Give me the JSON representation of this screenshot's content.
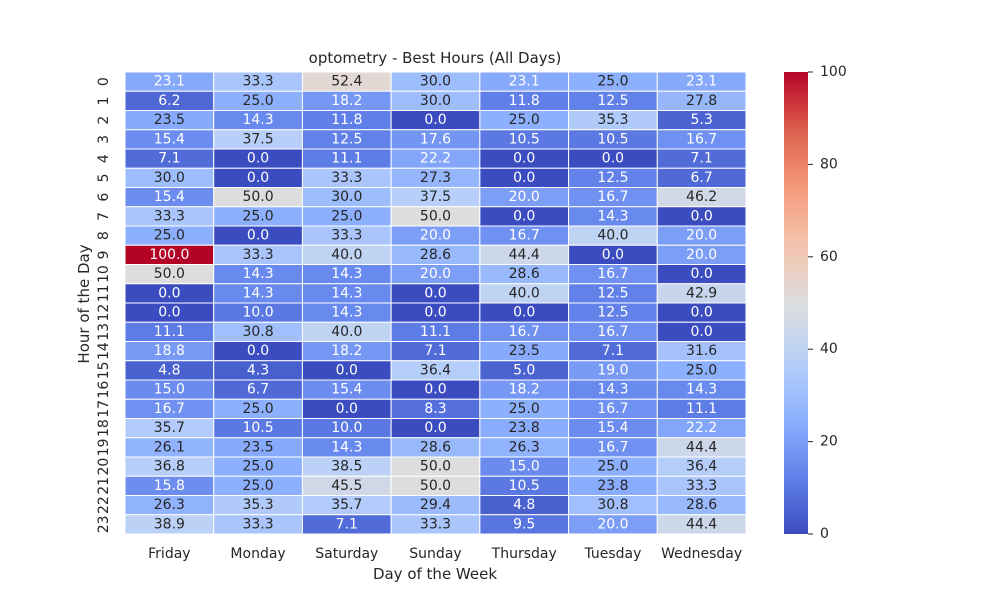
{
  "chart_data": {
    "type": "heatmap",
    "title": "optometry - Best Hours (All Days)",
    "xlabel": "Day of the Week",
    "ylabel": "Hour of the Day",
    "x_categories": [
      "Friday",
      "Monday",
      "Saturday",
      "Sunday",
      "Thursday",
      "Tuesday",
      "Wednesday"
    ],
    "y_categories": [
      "0",
      "1",
      "2",
      "3",
      "4",
      "5",
      "6",
      "7",
      "8",
      "9",
      "10",
      "11",
      "12",
      "13",
      "14",
      "15",
      "16",
      "17",
      "18",
      "19",
      "20",
      "21",
      "22",
      "23"
    ],
    "values": [
      [
        23.1,
        33.3,
        52.4,
        30.0,
        23.1,
        25.0,
        23.1
      ],
      [
        6.2,
        25.0,
        18.2,
        30.0,
        11.8,
        12.5,
        27.8
      ],
      [
        23.5,
        14.3,
        11.8,
        0.0,
        25.0,
        35.3,
        5.3
      ],
      [
        15.4,
        37.5,
        12.5,
        17.6,
        10.5,
        10.5,
        16.7
      ],
      [
        7.1,
        0.0,
        11.1,
        22.2,
        0.0,
        0.0,
        7.1
      ],
      [
        30.0,
        0.0,
        33.3,
        27.3,
        0.0,
        12.5,
        6.7
      ],
      [
        15.4,
        50.0,
        30.0,
        37.5,
        20.0,
        16.7,
        46.2
      ],
      [
        33.3,
        25.0,
        25.0,
        50.0,
        0.0,
        14.3,
        0.0
      ],
      [
        25.0,
        0.0,
        33.3,
        20.0,
        16.7,
        40.0,
        20.0
      ],
      [
        100.0,
        33.3,
        40.0,
        28.6,
        44.4,
        0.0,
        20.0
      ],
      [
        50.0,
        14.3,
        14.3,
        20.0,
        28.6,
        16.7,
        0.0
      ],
      [
        0.0,
        14.3,
        14.3,
        0.0,
        40.0,
        12.5,
        42.9
      ],
      [
        0.0,
        10.0,
        14.3,
        0.0,
        0.0,
        12.5,
        0.0
      ],
      [
        11.1,
        30.8,
        40.0,
        11.1,
        16.7,
        16.7,
        0.0
      ],
      [
        18.8,
        0.0,
        18.2,
        7.1,
        23.5,
        7.1,
        31.6
      ],
      [
        4.8,
        4.3,
        0.0,
        36.4,
        5.0,
        19.0,
        25.0
      ],
      [
        15.0,
        6.7,
        15.4,
        0.0,
        18.2,
        14.3,
        14.3
      ],
      [
        16.7,
        25.0,
        0.0,
        8.3,
        25.0,
        16.7,
        11.1
      ],
      [
        35.7,
        10.5,
        10.0,
        0.0,
        23.8,
        15.4,
        22.2
      ],
      [
        26.1,
        23.5,
        14.3,
        28.6,
        26.3,
        16.7,
        44.4
      ],
      [
        36.8,
        25.0,
        38.5,
        50.0,
        15.0,
        25.0,
        36.4
      ],
      [
        15.8,
        25.0,
        45.5,
        50.0,
        10.5,
        23.8,
        33.3
      ],
      [
        26.3,
        35.3,
        35.7,
        29.4,
        4.8,
        30.8,
        28.6
      ],
      [
        38.9,
        33.3,
        7.1,
        33.3,
        9.5,
        20.0,
        44.4
      ]
    ],
    "value_format": "0.0",
    "vmin": 0,
    "vmax": 100,
    "colormap": "coolwarm",
    "colorbar_ticks": [
      0,
      20,
      40,
      60,
      80,
      100
    ],
    "colorbar_tick_labels": [
      "0",
      "20",
      "40",
      "60",
      "80",
      "100"
    ],
    "grid": false,
    "cell_border_color": "#ffffff"
  }
}
